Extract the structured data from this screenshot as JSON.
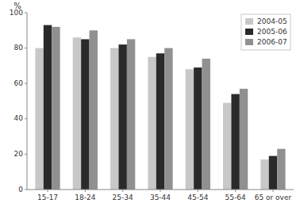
{
  "chart_data": {
    "type": "bar",
    "y_label": "%",
    "categories": [
      "15-17",
      "18-24",
      "25-34",
      "35-44",
      "45-54",
      "55-64",
      "65 or over"
    ],
    "series": [
      {
        "name": "2004-05",
        "color": "#c8c8c8",
        "values": [
          80,
          86,
          80,
          75,
          68,
          49,
          17
        ]
      },
      {
        "name": "2005-06",
        "color": "#2a2a2a",
        "values": [
          93,
          85,
          82,
          77,
          69,
          54,
          19
        ]
      },
      {
        "name": "2006-07",
        "color": "#909090",
        "values": [
          92,
          90,
          85,
          80,
          74,
          57,
          23
        ]
      }
    ],
    "ylim": [
      0,
      100
    ],
    "yticks": [
      0,
      20,
      40,
      60,
      80,
      100
    ],
    "grid": false,
    "legend": "upper right"
  }
}
